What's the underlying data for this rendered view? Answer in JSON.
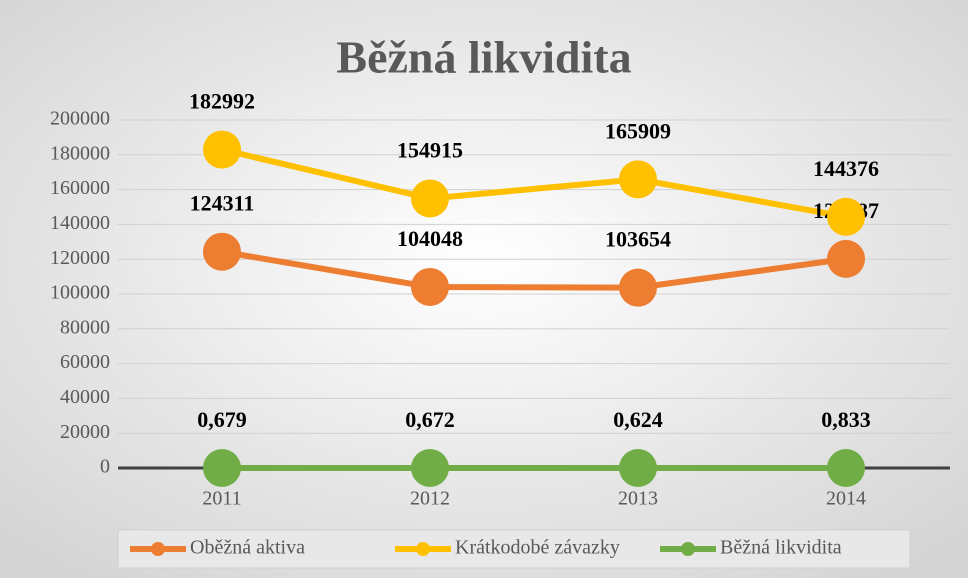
{
  "chart_data": {
    "type": "line",
    "title": "Běžná likvidita",
    "categories": [
      "2011",
      "2012",
      "2013",
      "2014"
    ],
    "series": [
      {
        "name": "Oběžná aktiva",
        "color": "#ed7d31",
        "values": [
          124311,
          104048,
          103654,
          120187
        ]
      },
      {
        "name": "Krátkodobé závazky",
        "color": "#ffc000",
        "values": [
          182992,
          154915,
          165909,
          144376
        ]
      },
      {
        "name": "Běžná likvidita",
        "color": "#70ad47",
        "values": [
          0.679,
          0.672,
          0.624,
          0.833
        ],
        "value_labels": [
          "0,679",
          "0,672",
          "0,624",
          "0,833"
        ]
      }
    ],
    "ylim": [
      0,
      200000
    ],
    "yticks": [
      0,
      20000,
      40000,
      60000,
      80000,
      100000,
      120000,
      140000,
      160000,
      180000,
      200000
    ],
    "grid": true,
    "legend": "bottom"
  }
}
